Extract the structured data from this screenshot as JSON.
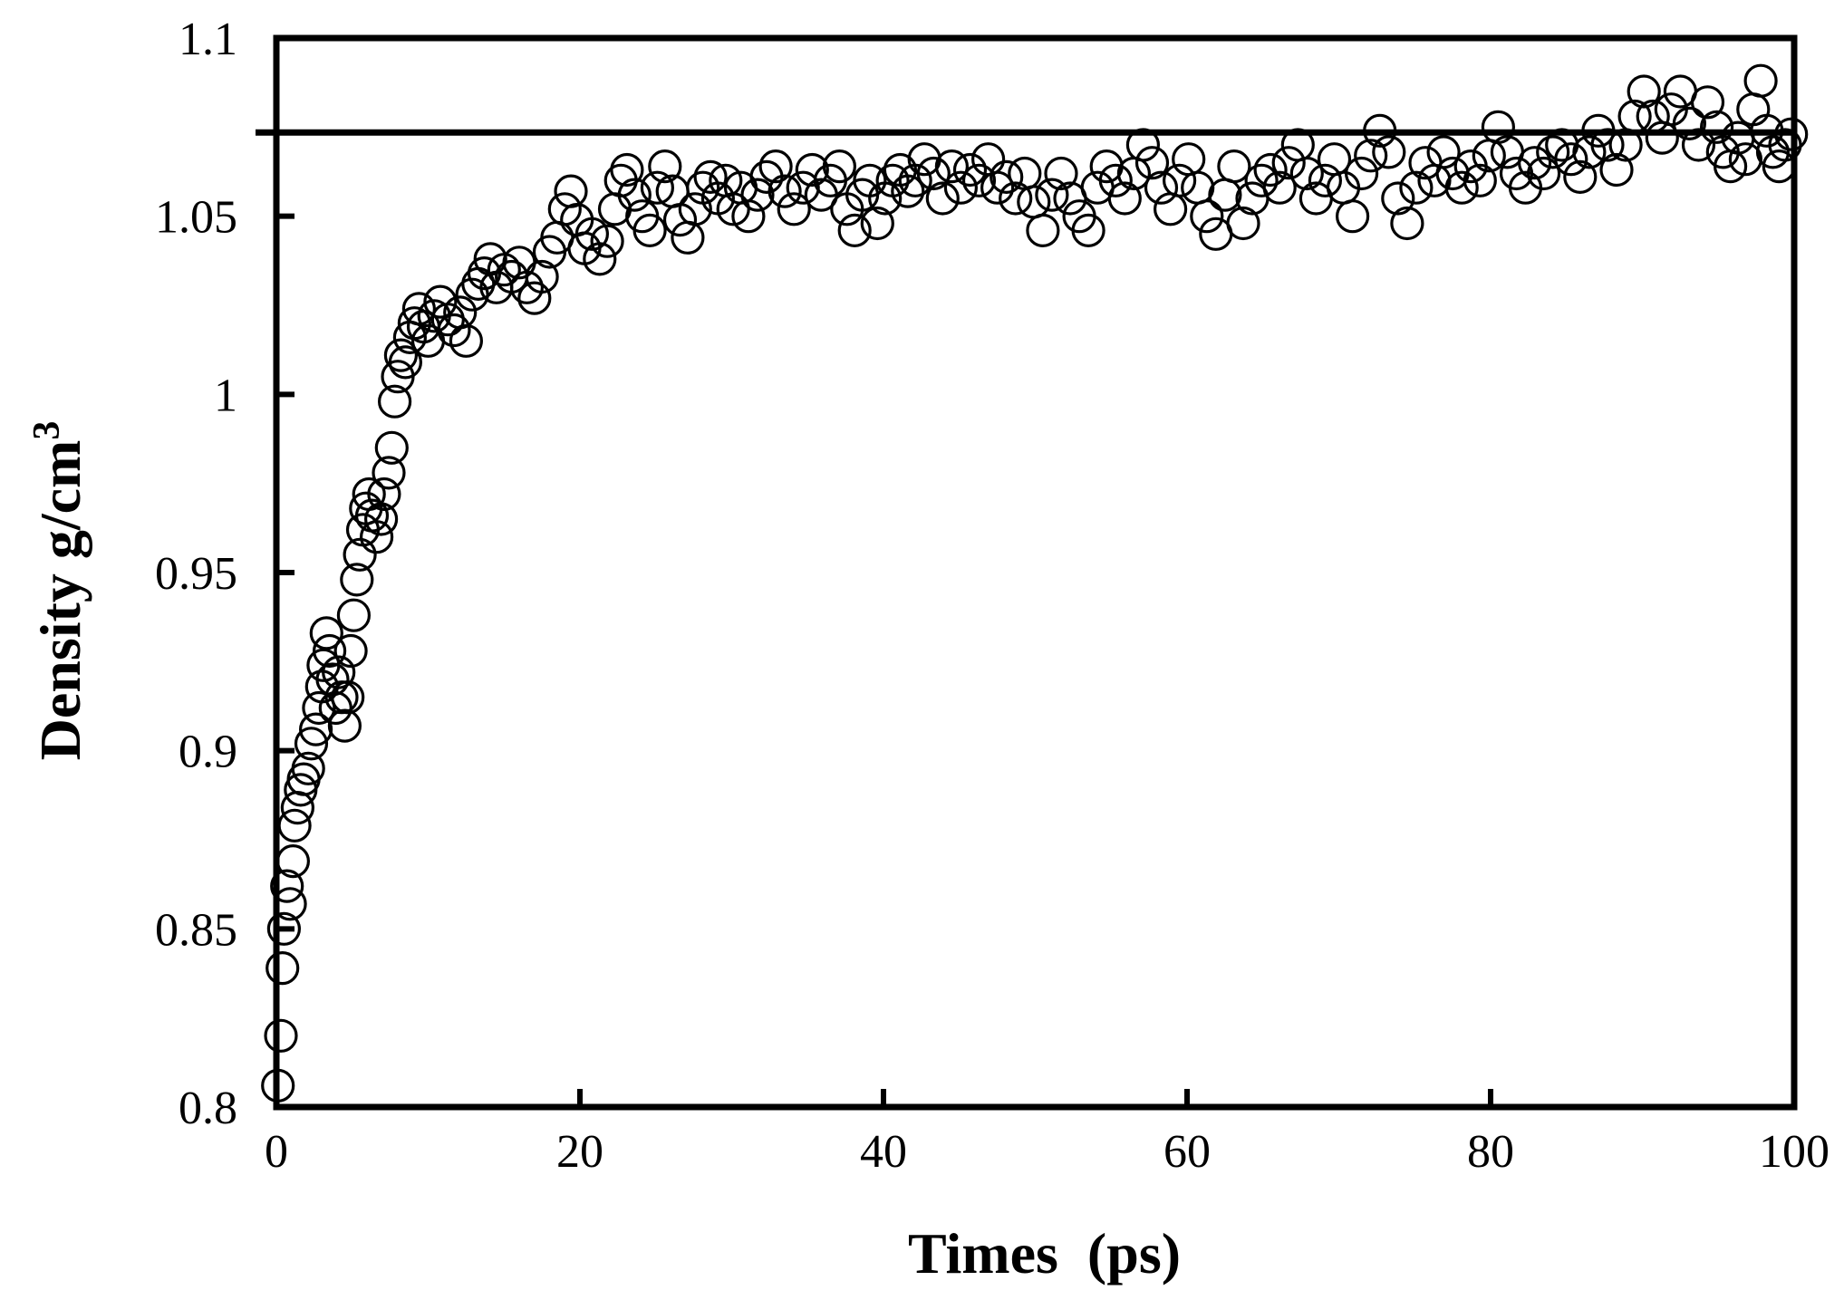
{
  "chart_data": {
    "type": "scatter",
    "xlabel": "Times  (ps)",
    "ylabel": "Density g/cm",
    "ylabel_superscript": "3",
    "xlim": [
      0,
      100
    ],
    "ylim": [
      0.8,
      1.1
    ],
    "xticks": [
      "0",
      "20",
      "40",
      "60",
      "80",
      "100"
    ],
    "yticks": [
      "0.8",
      "0.85",
      "0.9",
      "0.95",
      "1",
      "1.05",
      "1.1"
    ],
    "grid": false,
    "reference_line": {
      "y": 1.0735
    },
    "marker": "open-circle",
    "series": [
      {
        "points": [
          [
            0.1,
            0.806
          ],
          [
            0.3,
            0.82
          ],
          [
            0.4,
            0.839
          ],
          [
            0.5,
            0.85
          ],
          [
            0.7,
            0.862
          ],
          [
            0.9,
            0.857
          ],
          [
            1.1,
            0.869
          ],
          [
            1.2,
            0.879
          ],
          [
            1.4,
            0.884
          ],
          [
            1.6,
            0.889
          ],
          [
            1.8,
            0.892
          ],
          [
            2.1,
            0.895
          ],
          [
            2.3,
            0.902
          ],
          [
            2.6,
            0.906
          ],
          [
            2.8,
            0.912
          ],
          [
            3.0,
            0.918
          ],
          [
            3.1,
            0.924
          ],
          [
            3.3,
            0.933
          ],
          [
            3.5,
            0.928
          ],
          [
            3.7,
            0.92
          ],
          [
            3.9,
            0.912
          ],
          [
            4.1,
            0.922
          ],
          [
            4.3,
            0.915
          ],
          [
            4.5,
            0.907
          ],
          [
            4.7,
            0.915
          ],
          [
            4.9,
            0.928
          ],
          [
            5.1,
            0.938
          ],
          [
            5.3,
            0.948
          ],
          [
            5.5,
            0.955
          ],
          [
            5.7,
            0.962
          ],
          [
            5.9,
            0.968
          ],
          [
            6.1,
            0.972
          ],
          [
            6.3,
            0.966
          ],
          [
            6.6,
            0.96
          ],
          [
            6.9,
            0.965
          ],
          [
            7.1,
            0.972
          ],
          [
            7.4,
            0.978
          ],
          [
            7.6,
            0.985
          ],
          [
            7.8,
            0.998
          ],
          [
            8.0,
            1.005
          ],
          [
            8.2,
            1.011
          ],
          [
            8.5,
            1.009
          ],
          [
            8.8,
            1.016
          ],
          [
            9.1,
            1.02
          ],
          [
            9.4,
            1.024
          ],
          [
            9.7,
            1.019
          ],
          [
            10.0,
            1.015
          ],
          [
            10.4,
            1.022
          ],
          [
            10.8,
            1.026
          ],
          [
            11.3,
            1.021
          ],
          [
            11.7,
            1.018
          ],
          [
            12.1,
            1.023
          ],
          [
            12.5,
            1.015
          ],
          [
            12.9,
            1.028
          ],
          [
            13.3,
            1.031
          ],
          [
            13.7,
            1.034
          ],
          [
            14.1,
            1.038
          ],
          [
            14.5,
            1.03
          ],
          [
            15.0,
            1.035
          ],
          [
            15.5,
            1.033
          ],
          [
            16.0,
            1.037
          ],
          [
            16.5,
            1.03
          ],
          [
            17.0,
            1.027
          ],
          [
            17.5,
            1.033
          ],
          [
            18.0,
            1.04
          ],
          [
            18.5,
            1.044
          ],
          [
            19.0,
            1.052
          ],
          [
            19.4,
            1.057
          ],
          [
            19.8,
            1.049
          ],
          [
            20.3,
            1.041
          ],
          [
            20.8,
            1.045
          ],
          [
            21.3,
            1.038
          ],
          [
            21.8,
            1.043
          ],
          [
            22.3,
            1.052
          ],
          [
            22.7,
            1.06
          ],
          [
            23.1,
            1.063
          ],
          [
            23.6,
            1.056
          ],
          [
            24.1,
            1.05
          ],
          [
            24.6,
            1.046
          ],
          [
            25.1,
            1.058
          ],
          [
            25.6,
            1.064
          ],
          [
            26.1,
            1.057
          ],
          [
            26.6,
            1.049
          ],
          [
            27.1,
            1.044
          ],
          [
            27.6,
            1.052
          ],
          [
            28.1,
            1.058
          ],
          [
            28.6,
            1.061
          ],
          [
            29.1,
            1.055
          ],
          [
            29.6,
            1.06
          ],
          [
            30.1,
            1.052
          ],
          [
            30.6,
            1.058
          ],
          [
            31.1,
            1.05
          ],
          [
            31.7,
            1.056
          ],
          [
            32.3,
            1.061
          ],
          [
            32.9,
            1.064
          ],
          [
            33.5,
            1.057
          ],
          [
            34.1,
            1.052
          ],
          [
            34.7,
            1.058
          ],
          [
            35.3,
            1.063
          ],
          [
            35.9,
            1.056
          ],
          [
            36.5,
            1.06
          ],
          [
            37.1,
            1.064
          ],
          [
            37.6,
            1.052
          ],
          [
            38.1,
            1.046
          ],
          [
            38.6,
            1.056
          ],
          [
            39.1,
            1.06
          ],
          [
            39.6,
            1.048
          ],
          [
            40.1,
            1.055
          ],
          [
            40.6,
            1.06
          ],
          [
            41.1,
            1.063
          ],
          [
            41.6,
            1.057
          ],
          [
            42.1,
            1.06
          ],
          [
            42.7,
            1.066
          ],
          [
            43.3,
            1.062
          ],
          [
            43.9,
            1.055
          ],
          [
            44.5,
            1.064
          ],
          [
            45.1,
            1.058
          ],
          [
            45.7,
            1.063
          ],
          [
            46.3,
            1.06
          ],
          [
            46.9,
            1.066
          ],
          [
            47.5,
            1.058
          ],
          [
            48.1,
            1.061
          ],
          [
            48.7,
            1.055
          ],
          [
            49.3,
            1.062
          ],
          [
            49.9,
            1.054
          ],
          [
            50.5,
            1.046
          ],
          [
            51.1,
            1.056
          ],
          [
            51.7,
            1.062
          ],
          [
            52.3,
            1.055
          ],
          [
            52.9,
            1.05
          ],
          [
            53.5,
            1.046
          ],
          [
            54.1,
            1.058
          ],
          [
            54.7,
            1.064
          ],
          [
            55.3,
            1.06
          ],
          [
            55.9,
            1.055
          ],
          [
            56.5,
            1.062
          ],
          [
            57.1,
            1.07
          ],
          [
            57.7,
            1.065
          ],
          [
            58.3,
            1.058
          ],
          [
            58.9,
            1.052
          ],
          [
            59.5,
            1.06
          ],
          [
            60.1,
            1.066
          ],
          [
            60.7,
            1.058
          ],
          [
            61.3,
            1.05
          ],
          [
            61.9,
            1.045
          ],
          [
            62.5,
            1.056
          ],
          [
            63.1,
            1.064
          ],
          [
            63.7,
            1.048
          ],
          [
            64.3,
            1.055
          ],
          [
            64.9,
            1.06
          ],
          [
            65.5,
            1.063
          ],
          [
            66.1,
            1.058
          ],
          [
            66.7,
            1.065
          ],
          [
            67.3,
            1.07
          ],
          [
            67.9,
            1.062
          ],
          [
            68.5,
            1.055
          ],
          [
            69.1,
            1.06
          ],
          [
            69.7,
            1.066
          ],
          [
            70.3,
            1.058
          ],
          [
            70.9,
            1.05
          ],
          [
            71.5,
            1.062
          ],
          [
            72.1,
            1.067
          ],
          [
            72.7,
            1.074
          ],
          [
            73.3,
            1.068
          ],
          [
            73.9,
            1.055
          ],
          [
            74.5,
            1.048
          ],
          [
            75.1,
            1.058
          ],
          [
            75.7,
            1.065
          ],
          [
            76.3,
            1.06
          ],
          [
            76.9,
            1.068
          ],
          [
            77.5,
            1.062
          ],
          [
            78.1,
            1.058
          ],
          [
            78.7,
            1.064
          ],
          [
            79.3,
            1.06
          ],
          [
            79.9,
            1.067
          ],
          [
            80.5,
            1.075
          ],
          [
            81.1,
            1.068
          ],
          [
            81.7,
            1.062
          ],
          [
            82.3,
            1.058
          ],
          [
            82.9,
            1.065
          ],
          [
            83.5,
            1.062
          ],
          [
            84.1,
            1.068
          ],
          [
            84.7,
            1.07
          ],
          [
            85.3,
            1.066
          ],
          [
            85.9,
            1.061
          ],
          [
            86.5,
            1.068
          ],
          [
            87.1,
            1.074
          ],
          [
            87.7,
            1.07
          ],
          [
            88.3,
            1.063
          ],
          [
            88.9,
            1.07
          ],
          [
            89.5,
            1.078
          ],
          [
            90.1,
            1.085
          ],
          [
            90.7,
            1.078
          ],
          [
            91.3,
            1.072
          ],
          [
            91.9,
            1.08
          ],
          [
            92.5,
            1.085
          ],
          [
            93.1,
            1.076
          ],
          [
            93.7,
            1.07
          ],
          [
            94.3,
            1.082
          ],
          [
            94.9,
            1.075
          ],
          [
            95.3,
            1.068
          ],
          [
            95.8,
            1.064
          ],
          [
            96.3,
            1.072
          ],
          [
            96.8,
            1.066
          ],
          [
            97.3,
            1.08
          ],
          [
            97.8,
            1.088
          ],
          [
            98.2,
            1.074
          ],
          [
            98.6,
            1.068
          ],
          [
            99.0,
            1.064
          ],
          [
            99.4,
            1.07
          ],
          [
            99.8,
            1.073
          ]
        ]
      }
    ]
  }
}
